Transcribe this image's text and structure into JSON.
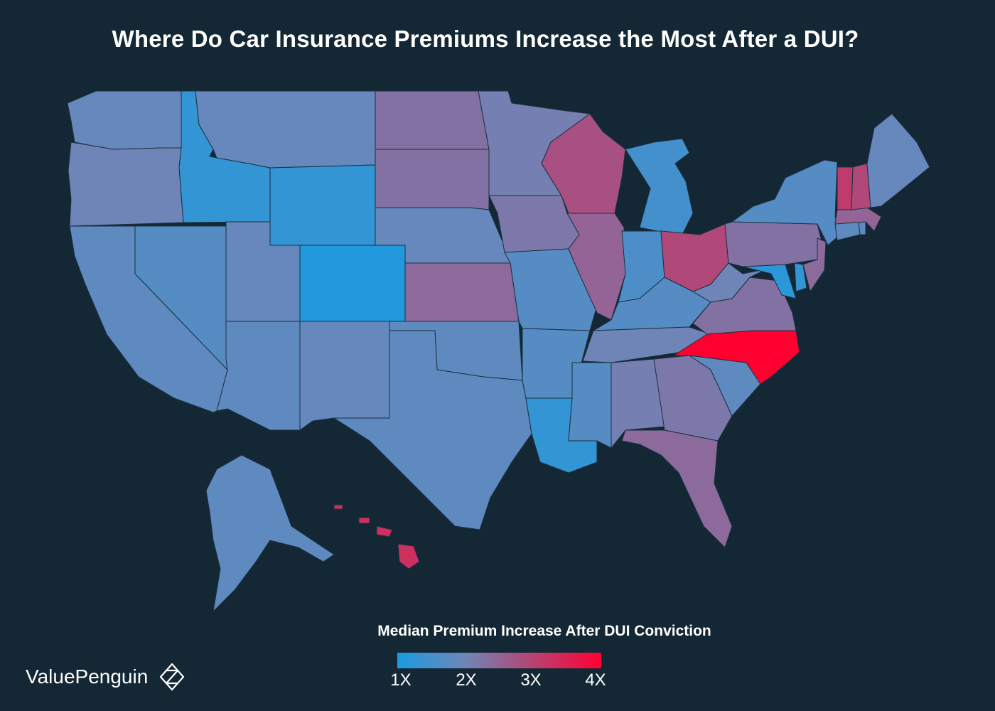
{
  "title": "Where Do Car Insurance Premiums Increase the Most After a DUI?",
  "legend": {
    "title": "Median Premium Increase After DUI Conviction",
    "ticks": [
      "1X",
      "2X",
      "3X",
      "4X"
    ],
    "color_min": "#1a9be0",
    "color_mid": "#6e86b8",
    "color_max": "#ff0030"
  },
  "brand": {
    "name": "ValuePenguin",
    "icon": "valuepenguin-logo-icon"
  },
  "states": {
    "WA": 1.9,
    "OR": 2.0,
    "CA": 1.8,
    "NV": 1.7,
    "ID": 1.3,
    "MT": 1.9,
    "WY": 1.3,
    "UT": 1.9,
    "CO": 1.1,
    "AZ": 1.8,
    "NM": 1.9,
    "ND": 2.3,
    "SD": 2.3,
    "NE": 1.9,
    "KS": 2.4,
    "OK": 1.8,
    "TX": 1.8,
    "MN": 2.1,
    "IA": 2.2,
    "MO": 1.7,
    "AR": 1.7,
    "LA": 1.3,
    "WI": 2.8,
    "IL": 2.5,
    "MI": 1.5,
    "IN": 1.6,
    "OH": 2.9,
    "KY": 1.7,
    "TN": 2.0,
    "MS": 1.7,
    "AL": 2.1,
    "GA": 2.2,
    "FL": 2.4,
    "SC": 1.8,
    "NC": 4.0,
    "VA": 2.3,
    "WV": 2.0,
    "MD": 1.2,
    "DE": 1.3,
    "PA": 2.3,
    "NJ": 2.4,
    "NY": 1.7,
    "CT": 1.8,
    "RI": 1.8,
    "MA": 2.5,
    "VT": 3.1,
    "NH": 2.9,
    "ME": 1.9,
    "AK": 1.8,
    "HI": 3.3
  }
}
